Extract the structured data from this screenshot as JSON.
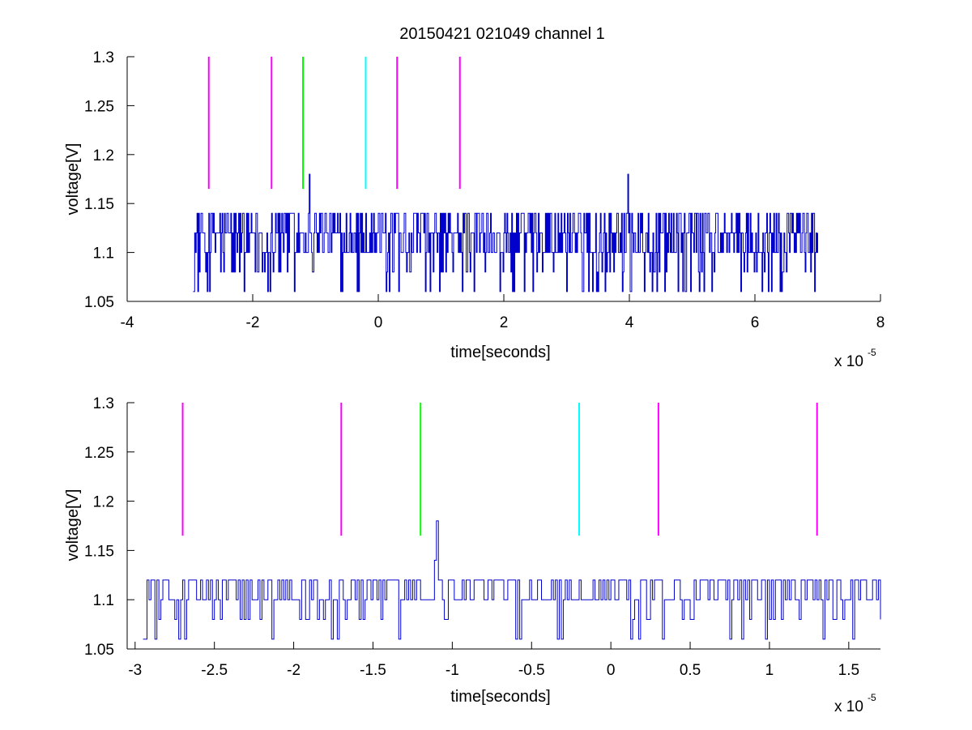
{
  "figure": {
    "title": "20150421 021049 channel 1"
  },
  "chart_data": [
    {
      "type": "line",
      "title": "20150421 021049 channel 1",
      "xlabel": "time[seconds]",
      "ylabel": "voltage[V]",
      "x_multiplier": "x 10",
      "x_exponent": "-5",
      "xlim": [
        -4,
        8
      ],
      "ylim": [
        1.05,
        1.3
      ],
      "xticks": [
        -4,
        -2,
        0,
        2,
        4,
        6,
        8
      ],
      "xtick_labels": [
        "-4",
        "-2",
        "0",
        "2",
        "4",
        "6",
        "8"
      ],
      "yticks": [
        1.05,
        1.1,
        1.15,
        1.2,
        1.25,
        1.3
      ],
      "ytick_labels": [
        "1.05",
        "1.1",
        "1.15",
        "1.2",
        "1.25",
        "1.3"
      ],
      "grid": false,
      "signal": {
        "color": "#0000cc",
        "x_range": [
          -2.95,
          7.0
        ],
        "levels": [
          1.06,
          1.08,
          1.1,
          1.12,
          1.14
        ],
        "dominant_levels": [
          1.1,
          1.12,
          1.14
        ],
        "spikes": [
          {
            "x": -1.1,
            "y": 1.18
          },
          {
            "x": 3.97,
            "y": 1.18
          }
        ]
      },
      "markers": [
        {
          "x": -2.7,
          "y_range": [
            1.165,
            1.3
          ],
          "color": "#ff00ff"
        },
        {
          "x": -1.7,
          "y_range": [
            1.165,
            1.3
          ],
          "color": "#ff00ff"
        },
        {
          "x": -1.2,
          "y_range": [
            1.165,
            1.3
          ],
          "color": "#00ff00"
        },
        {
          "x": -0.2,
          "y_range": [
            1.165,
            1.3
          ],
          "color": "#00ffff"
        },
        {
          "x": 0.3,
          "y_range": [
            1.165,
            1.3
          ],
          "color": "#ff00ff"
        },
        {
          "x": 1.3,
          "y_range": [
            1.165,
            1.3
          ],
          "color": "#ff00ff"
        }
      ]
    },
    {
      "type": "line",
      "title": "",
      "xlabel": "time[seconds]",
      "ylabel": "voltage[V]",
      "x_multiplier": "x 10",
      "x_exponent": "-5",
      "xlim": [
        -3.05,
        1.7
      ],
      "ylim": [
        1.05,
        1.3
      ],
      "xticks": [
        -3,
        -2.5,
        -2,
        -1.5,
        -1,
        -0.5,
        0,
        0.5,
        1,
        1.5
      ],
      "xtick_labels": [
        "-3",
        "-2.5",
        "-2",
        "-1.5",
        "-1",
        "-0.5",
        "0",
        "0.5",
        "1",
        "1.5"
      ],
      "yticks": [
        1.05,
        1.1,
        1.15,
        1.2,
        1.25,
        1.3
      ],
      "ytick_labels": [
        "1.05",
        "1.1",
        "1.15",
        "1.2",
        "1.25",
        "1.3"
      ],
      "grid": false,
      "signal": {
        "color": "#0000cc",
        "x_range": [
          -2.95,
          1.7
        ],
        "levels": [
          1.06,
          1.08,
          1.1,
          1.12,
          1.14
        ],
        "dominant_levels": [
          1.1,
          1.12
        ],
        "spikes": [
          {
            "x": -1.1,
            "y": 1.18
          }
        ]
      },
      "markers": [
        {
          "x": -2.7,
          "y_range": [
            1.165,
            1.3
          ],
          "color": "#ff00ff"
        },
        {
          "x": -1.7,
          "y_range": [
            1.165,
            1.3
          ],
          "color": "#ff00ff"
        },
        {
          "x": -1.2,
          "y_range": [
            1.165,
            1.3
          ],
          "color": "#00ff00"
        },
        {
          "x": -0.2,
          "y_range": [
            1.165,
            1.3
          ],
          "color": "#00ffff"
        },
        {
          "x": 0.3,
          "y_range": [
            1.165,
            1.3
          ],
          "color": "#ff00ff"
        },
        {
          "x": 1.3,
          "y_range": [
            1.165,
            1.3
          ],
          "color": "#ff00ff"
        }
      ]
    }
  ]
}
